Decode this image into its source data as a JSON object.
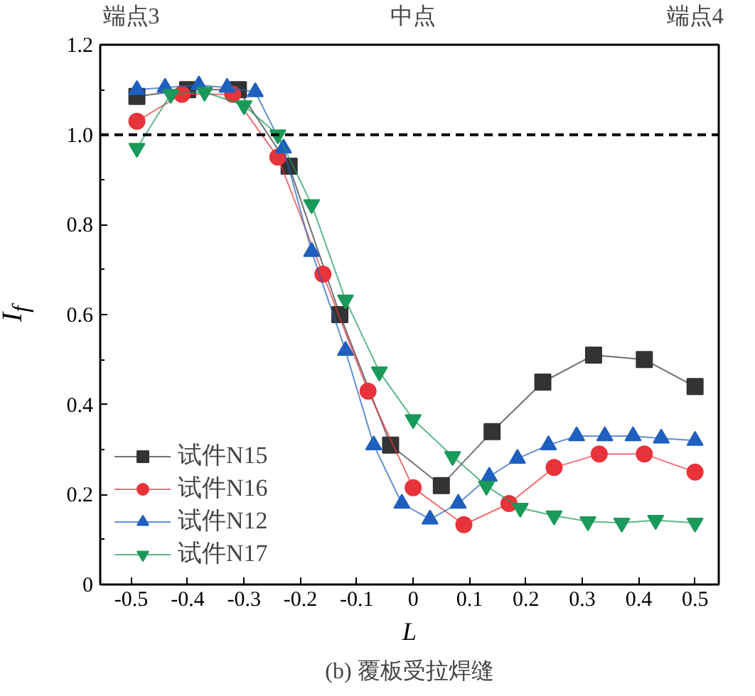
{
  "chart_data": {
    "type": "line",
    "title": "(b) 覆板受拉焊缝",
    "xlabel": "L",
    "ylabel": "I$_{f}$",
    "xlim": [
      -0.555,
      0.542
    ],
    "ylim": [
      0,
      1.2
    ],
    "xticks": [
      -0.5,
      -0.4,
      -0.3,
      -0.2,
      -0.1,
      0,
      0.1,
      0.2,
      0.3,
      0.4,
      0.5
    ],
    "yticks": [
      0,
      0.2,
      0.4,
      0.6,
      0.8,
      {
        "value": 1.0,
        "label": "1.0"
      },
      1.2
    ],
    "annotations": [
      "端点3",
      "中点",
      "端点4"
    ],
    "ref_lines": [
      {
        "axis": "y",
        "value": 1.0,
        "color": "#000000",
        "line_style": "dashed"
      }
    ],
    "grid": false,
    "legend": "bottom left",
    "line_style": "solid",
    "series": [
      {
        "name": "试件N15",
        "color": "#333333",
        "marker": "square",
        "x": [
          -0.49,
          -0.4,
          -0.31,
          -0.22,
          -0.13,
          -0.04,
          0.05,
          0.14,
          0.23,
          0.32,
          0.41,
          0.5
        ],
        "values": [
          1.085,
          1.1,
          1.1,
          0.93,
          0.6,
          0.31,
          0.22,
          0.34,
          0.45,
          0.51,
          0.5,
          0.44
        ]
      },
      {
        "name": "试件N16",
        "color": "#e8333a",
        "marker": "circle",
        "x": [
          -0.49,
          -0.41,
          -0.32,
          -0.24,
          -0.16,
          -0.08,
          0.0,
          0.09,
          0.17,
          0.25,
          0.33,
          0.41,
          0.5
        ],
        "values": [
          1.03,
          1.09,
          1.09,
          0.95,
          0.69,
          0.43,
          0.215,
          0.133,
          0.18,
          0.26,
          0.29,
          0.29,
          0.25
        ]
      },
      {
        "name": "试件N12",
        "color": "#1f5fbf",
        "marker": "triangle",
        "x": [
          -0.49,
          -0.44,
          -0.38,
          -0.33,
          -0.28,
          -0.23,
          -0.18,
          -0.12,
          -0.07,
          -0.02,
          0.03,
          0.08,
          0.135,
          0.185,
          0.24,
          0.29,
          0.34,
          0.39,
          0.44,
          0.5
        ],
        "values": [
          1.1,
          1.105,
          1.11,
          1.105,
          1.095,
          0.97,
          0.74,
          0.52,
          0.31,
          0.18,
          0.145,
          0.18,
          0.24,
          0.28,
          0.31,
          0.33,
          0.33,
          0.33,
          0.325,
          0.32
        ]
      },
      {
        "name": "试件N17",
        "color": "#1a9a5a",
        "marker": "triangle",
        "x": [
          -0.49,
          -0.43,
          -0.37,
          -0.3,
          -0.24,
          -0.18,
          -0.12,
          -0.06,
          0.0,
          0.07,
          0.13,
          0.19,
          0.25,
          0.31,
          0.37,
          0.43,
          0.5
        ],
        "values": [
          0.97,
          1.09,
          1.095,
          1.065,
          1.0,
          0.845,
          0.633,
          0.473,
          0.367,
          0.285,
          0.219,
          0.17,
          0.153,
          0.14,
          0.137,
          0.143,
          0.137
        ]
      }
    ]
  }
}
